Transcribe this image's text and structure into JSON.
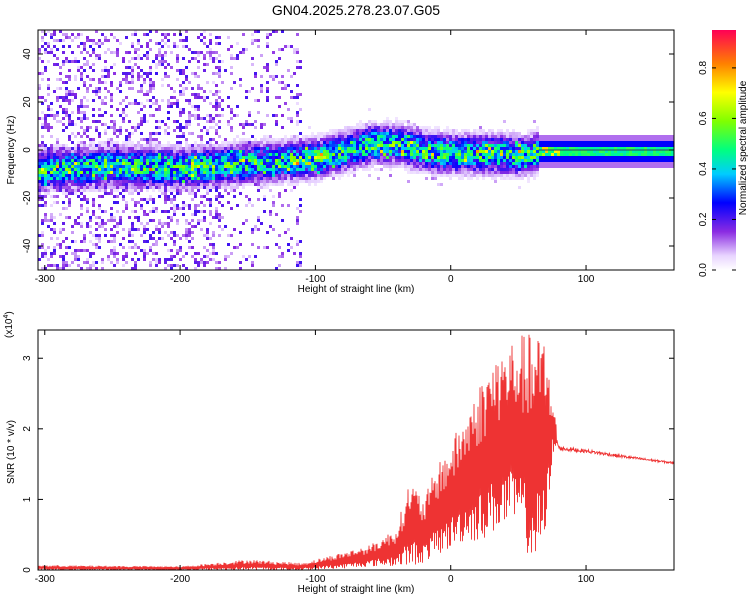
{
  "title": "GN04.2025.278.23.07.G05",
  "chart_data": [
    {
      "type": "heatmap",
      "xlabel": "Height of straight line (km)",
      "ylabel": "Frequency (Hz)",
      "xlim": [
        -305,
        165
      ],
      "ylim": [
        -50,
        50
      ],
      "xticks": [
        -300,
        -200,
        -100,
        0,
        100
      ],
      "yticks": [
        -40,
        -20,
        0,
        20,
        40
      ],
      "colorbar": {
        "label": "Normalized spectral amplitude",
        "range": [
          0,
          0.95
        ],
        "ticks": [
          0.0,
          0.2,
          0.4,
          0.6,
          0.8
        ]
      },
      "ridge_center_hz": {
        "x": [
          -305,
          -250,
          -200,
          -150,
          -100,
          -60,
          -40,
          -20,
          0,
          30,
          55,
          65,
          100,
          165
        ],
        "y": [
          -8,
          -6,
          -7,
          -5,
          -3,
          3,
          3,
          0,
          -1,
          -1,
          -2,
          0,
          0,
          0
        ]
      }
    },
    {
      "type": "line",
      "xlabel": "Height of straight line (km)",
      "ylabel": "SNR (10 * v/v)",
      "y_scale_label": "(x10^4)",
      "y_scale_text": "(x10",
      "y_scale_exp": "4",
      "xlim": [
        -305,
        165
      ],
      "ylim": [
        0,
        3.4
      ],
      "xticks": [
        -300,
        -200,
        -100,
        0,
        100
      ],
      "yticks": [
        0,
        1,
        2,
        3
      ],
      "series": [
        {
          "name": "SNR",
          "color": "#ee3333",
          "envelope_upper": {
            "x": [
              -305,
              -200,
              -150,
              -110,
              -80,
              -60,
              -40,
              -30,
              -20,
              -10,
              0,
              10,
              20,
              30,
              40,
              50,
              60,
              70,
              75,
              80,
              100,
              130,
              165
            ],
            "y": [
              0.07,
              0.05,
              0.15,
              0.1,
              0.25,
              0.35,
              0.6,
              1.3,
              1.0,
              1.5,
              1.8,
              2.2,
              2.6,
              3.0,
              3.2,
              3.35,
              3.35,
              3.35,
              2.5,
              1.8,
              1.75,
              1.65,
              1.55
            ]
          },
          "envelope_lower": {
            "x": [
              -305,
              -200,
              -150,
              -110,
              -80,
              -60,
              -40,
              -30,
              -20,
              -10,
              0,
              10,
              20,
              30,
              40,
              50,
              60,
              70,
              75,
              80,
              100,
              130,
              165
            ],
            "y": [
              0.0,
              0.0,
              0.0,
              0.0,
              0.02,
              0.05,
              0.05,
              0.05,
              0.1,
              0.2,
              0.3,
              0.4,
              0.4,
              0.5,
              0.6,
              0.6,
              0.05,
              0.3,
              1.6,
              1.65,
              1.62,
              1.55,
              1.48
            ]
          }
        }
      ]
    }
  ]
}
